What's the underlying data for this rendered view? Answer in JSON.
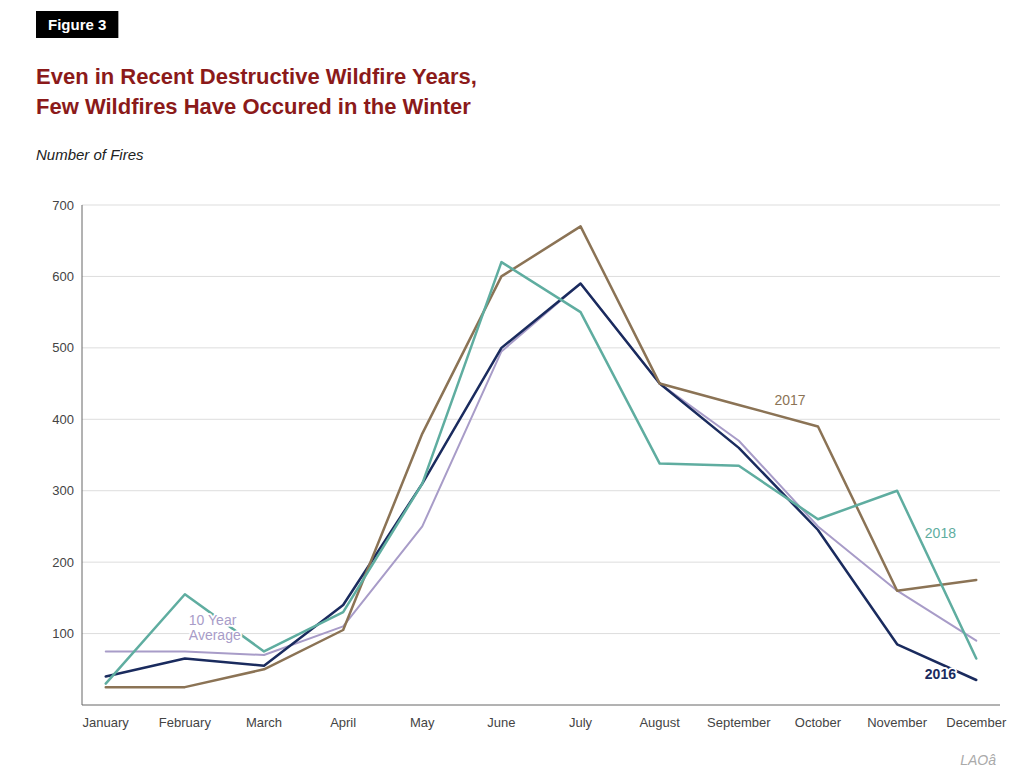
{
  "chart_data": {
    "type": "line",
    "title": "Even in Recent Destructive Wildfire Years,\nFew Wildfires Have Occured in the Winter",
    "subtitle": "Number of Fires",
    "annotations": [
      "Figure 3",
      "LAOâ"
    ],
    "categories": [
      "January",
      "February",
      "March",
      "April",
      "May",
      "June",
      "July",
      "August",
      "September",
      "October",
      "November",
      "December"
    ],
    "series": [
      {
        "name": "10 Year\nAverage",
        "color": "#a89cc8",
        "values": [
          75,
          75,
          70,
          110,
          250,
          495,
          590,
          450,
          370,
          250,
          160,
          90
        ]
      },
      {
        "name": "2016",
        "color": "#1a2b5e",
        "values": [
          40,
          65,
          55,
          140,
          310,
          500,
          590,
          450,
          360,
          245,
          85,
          35
        ]
      },
      {
        "name": "2017",
        "color": "#8b7355",
        "values": [
          25,
          25,
          50,
          105,
          380,
          600,
          670,
          450,
          420,
          390,
          160,
          175
        ]
      },
      {
        "name": "2018",
        "color": "#5fada0",
        "values": [
          30,
          155,
          75,
          130,
          310,
          620,
          550,
          338,
          335,
          260,
          300,
          65
        ]
      }
    ],
    "ylim": [
      0,
      700
    ],
    "yticks": [
      100,
      200,
      300,
      400,
      500,
      600,
      700
    ],
    "grid": true
  }
}
